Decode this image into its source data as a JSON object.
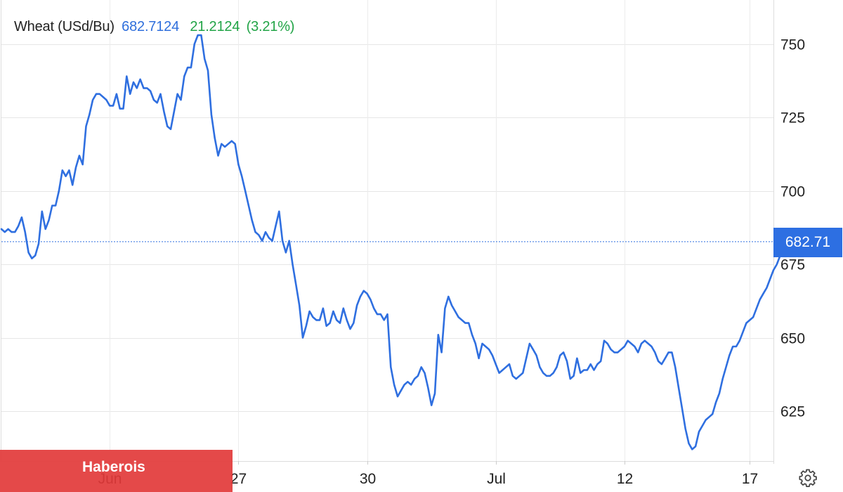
{
  "header": {
    "instrument": "Wheat (USd/Bu)",
    "last": "682.7124",
    "change": "21.2124",
    "change_pct": "(3.21%)"
  },
  "price_tag": "682.71",
  "banner": {
    "text": "Haberois"
  },
  "settings": {
    "icon": "gear-icon"
  },
  "colors": {
    "line": "#2f6fe0",
    "up": "#22a447",
    "tag": "#2d6fe2",
    "banner": "#e23a3a"
  },
  "chart_data": {
    "type": "line",
    "title": "Wheat (USd/Bu)",
    "ylim": [
      608,
      765
    ],
    "y_ticks": [
      625,
      650,
      675,
      700,
      725,
      750
    ],
    "y_tick_labels": [
      "625",
      "650",
      "675",
      "700",
      "725",
      "750"
    ],
    "x_ticks": [
      {
        "label": "Jun",
        "i": 32
      },
      {
        "label": "27",
        "i": 70
      },
      {
        "label": "30",
        "i": 108
      },
      {
        "label": "Jul",
        "i": 146
      },
      {
        "label": "12",
        "i": 184
      },
      {
        "label": "17",
        "i": 221
      }
    ],
    "x_range": [
      0,
      228
    ],
    "current_value": 682.71,
    "grid": true,
    "series": [
      {
        "values": [
          687,
          686,
          687,
          686,
          686,
          688,
          691,
          686,
          679,
          677,
          678,
          682,
          693,
          687,
          690,
          695,
          695,
          700,
          707,
          705,
          707,
          702,
          708,
          712,
          709,
          722,
          726,
          731,
          733,
          733,
          732,
          731,
          729,
          729,
          733,
          728,
          728,
          739,
          733,
          737,
          735,
          738,
          735,
          735,
          734,
          731,
          730,
          733,
          727,
          722,
          721,
          727,
          733,
          731,
          739,
          742,
          742,
          750,
          753,
          753,
          745,
          741,
          726,
          718,
          712,
          716,
          715,
          716,
          717,
          716,
          709,
          705,
          700,
          695,
          690,
          686,
          685,
          683,
          686,
          684,
          683,
          688,
          693,
          683,
          679,
          683,
          675,
          668,
          661,
          650,
          654,
          659,
          657,
          656,
          656,
          660,
          654,
          655,
          659,
          656,
          655,
          660,
          656,
          653,
          655,
          661,
          664,
          666,
          665,
          663,
          660,
          658,
          658,
          656,
          658,
          640,
          634,
          630,
          632,
          634,
          635,
          634,
          636,
          637,
          640,
          638,
          633,
          627,
          631,
          651,
          645,
          660,
          664,
          661,
          659,
          657,
          656,
          655,
          655,
          651,
          648,
          643,
          648,
          647,
          646,
          644,
          641,
          638,
          639,
          640,
          641,
          637,
          636,
          637,
          638,
          643,
          648,
          646,
          644,
          640,
          638,
          637,
          637,
          638,
          640,
          644,
          645,
          642,
          636,
          637,
          643,
          638,
          639,
          639,
          641,
          639,
          641,
          642,
          649,
          648,
          646,
          645,
          645,
          646,
          647,
          649,
          648,
          647,
          645,
          648,
          649,
          648,
          647,
          645,
          642,
          641,
          643,
          645,
          645,
          640,
          633,
          626,
          619,
          614,
          612,
          613,
          618,
          620,
          622,
          623,
          624,
          628,
          631,
          636,
          640,
          644,
          647,
          647,
          649,
          652,
          655,
          656,
          657,
          660,
          663,
          665,
          667,
          670,
          673,
          675,
          678,
          682.71
        ]
      }
    ]
  }
}
